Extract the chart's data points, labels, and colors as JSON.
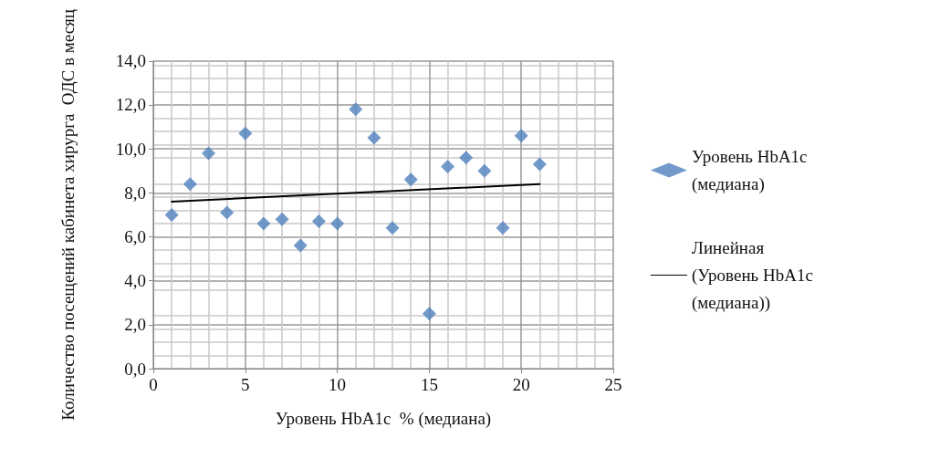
{
  "chart_data": {
    "type": "scatter",
    "xlabel": "Уровень HbA1c  % (медиана)",
    "ylabel": "Количество посещений кабинета хирурга  ОДС в месяц",
    "xlim": [
      0,
      25
    ],
    "xticks": [
      0,
      5,
      10,
      15,
      20,
      25
    ],
    "ylim": [
      0,
      14
    ],
    "yticks": [
      {
        "value": 0,
        "label": "0,0"
      },
      {
        "value": 2,
        "label": "2,0"
      },
      {
        "value": 4,
        "label": "4,0"
      },
      {
        "value": 6,
        "label": "6,0"
      },
      {
        "value": 8,
        "label": "8,0"
      },
      {
        "value": 10,
        "label": "10,0"
      },
      {
        "value": 12,
        "label": "12,0"
      },
      {
        "value": 14,
        "label": "14,0"
      }
    ],
    "grid": true,
    "legend": "right",
    "marker": "diamond",
    "series": [
      {
        "name": "Уровень HbA1c (медиана)",
        "color": "#4f81bd",
        "x": [
          1,
          2,
          3,
          4,
          5,
          6,
          7,
          8,
          9,
          10,
          11,
          12,
          13,
          14,
          15,
          16,
          17,
          18,
          19,
          20,
          21
        ],
        "values": [
          7.0,
          8.4,
          9.8,
          7.1,
          10.7,
          6.6,
          6.8,
          5.6,
          6.7,
          6.6,
          11.8,
          10.5,
          6.4,
          8.6,
          2.5,
          9.2,
          9.6,
          9.0,
          6.4,
          10.6,
          9.3
        ]
      },
      {
        "name": "Линейная (Уровень HbA1c (медиана))",
        "type": "line",
        "marker": "none",
        "line_style": "solid",
        "color": "#000000",
        "x": [
          1,
          21
        ],
        "values": [
          7.6,
          8.4
        ]
      }
    ]
  }
}
